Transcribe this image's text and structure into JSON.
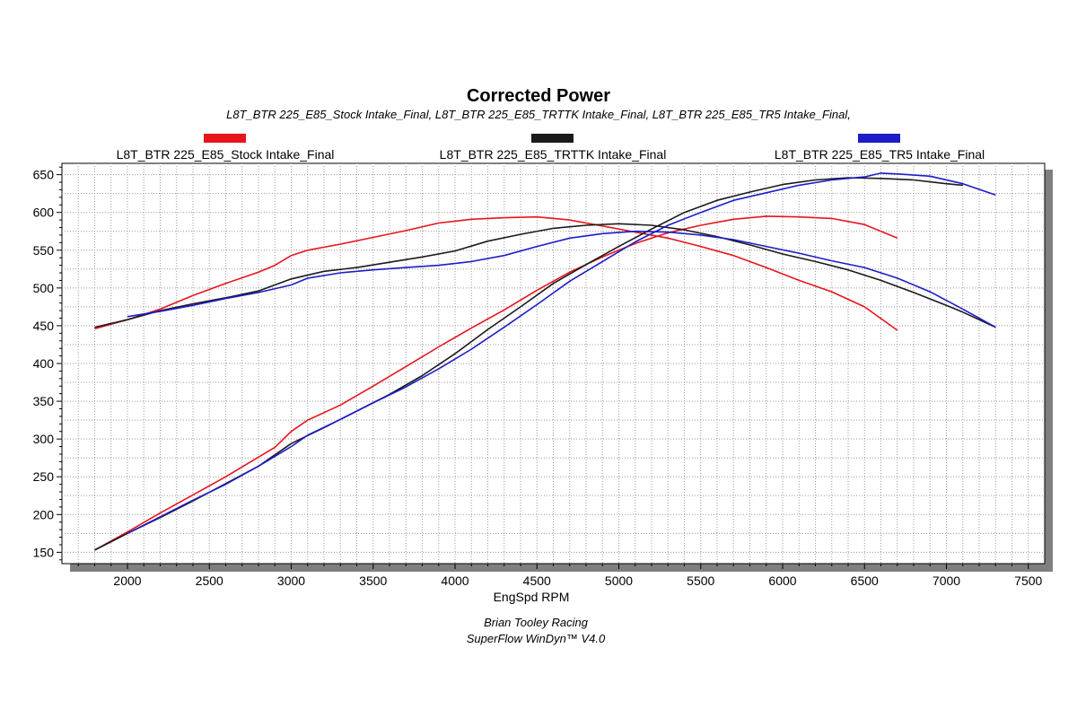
{
  "chart_data": {
    "type": "line",
    "title": "Corrected Power",
    "subtitle": "L8T_BTR 225_E85_Stock Intake_Final, L8T_BTR 225_E85_TRTTK Intake_Final, L8T_BTR 225_E85_TR5 Intake_Final,",
    "xlabel": "EngSpd RPM",
    "ylabel": "",
    "xlim": [
      1600,
      7600
    ],
    "ylim": [
      135,
      665
    ],
    "xticks": [
      2000,
      2500,
      3000,
      3500,
      4000,
      4500,
      5000,
      5500,
      6000,
      6500,
      7000,
      7500
    ],
    "yticks": [
      150,
      200,
      250,
      300,
      350,
      400,
      450,
      500,
      550,
      600,
      650
    ],
    "grid": true,
    "legend_position": "top",
    "credits": [
      "Brian Tooley Racing",
      "SuperFlow WinDyn™  V4.0"
    ],
    "series": [
      {
        "name": "L8T_BTR 225_E85_Stock Intake_Final",
        "color": "#e8141c",
        "curves": [
          {
            "kind": "torque",
            "points": [
              [
                1800,
                446
              ],
              [
                2000,
                458
              ],
              [
                2200,
                472
              ],
              [
                2400,
                490
              ],
              [
                2600,
                506
              ],
              [
                2800,
                521
              ],
              [
                2900,
                530
              ],
              [
                3000,
                543
              ],
              [
                3100,
                550
              ],
              [
                3300,
                558
              ],
              [
                3500,
                567
              ],
              [
                3700,
                576
              ],
              [
                3900,
                586
              ],
              [
                4100,
                591
              ],
              [
                4300,
                593
              ],
              [
                4500,
                594
              ],
              [
                4700,
                590
              ],
              [
                4900,
                582
              ],
              [
                5100,
                574
              ],
              [
                5300,
                566
              ],
              [
                5500,
                555
              ],
              [
                5700,
                543
              ],
              [
                5900,
                527
              ],
              [
                6100,
                510
              ],
              [
                6300,
                495
              ],
              [
                6500,
                475
              ],
              [
                6700,
                444
              ]
            ]
          },
          {
            "kind": "power",
            "points": [
              [
                1800,
                153
              ],
              [
                2000,
                177
              ],
              [
                2200,
                202
              ],
              [
                2400,
                226
              ],
              [
                2600,
                250
              ],
              [
                2800,
                276
              ],
              [
                2900,
                289
              ],
              [
                3000,
                310
              ],
              [
                3100,
                325
              ],
              [
                3300,
                345
              ],
              [
                3500,
                370
              ],
              [
                3700,
                396
              ],
              [
                3900,
                422
              ],
              [
                4100,
                447
              ],
              [
                4300,
                471
              ],
              [
                4500,
                497
              ],
              [
                4700,
                521
              ],
              [
                4900,
                541
              ],
              [
                5100,
                559
              ],
              [
                5300,
                573
              ],
              [
                5500,
                583
              ],
              [
                5700,
                591
              ],
              [
                5900,
                595
              ],
              [
                6100,
                594
              ],
              [
                6300,
                592
              ],
              [
                6500,
                584
              ],
              [
                6700,
                566
              ]
            ]
          }
        ]
      },
      {
        "name": "L8T_BTR 225_E85_TRTTK Intake_Final",
        "color": "#1a1a1a",
        "curves": [
          {
            "kind": "torque",
            "points": [
              [
                1800,
                448
              ],
              [
                2000,
                458
              ],
              [
                2200,
                470
              ],
              [
                2400,
                479
              ],
              [
                2600,
                487
              ],
              [
                2800,
                496
              ],
              [
                3000,
                512
              ],
              [
                3200,
                522
              ],
              [
                3400,
                527
              ],
              [
                3600,
                534
              ],
              [
                3800,
                541
              ],
              [
                4000,
                549
              ],
              [
                4200,
                562
              ],
              [
                4400,
                571
              ],
              [
                4600,
                579
              ],
              [
                4800,
                583
              ],
              [
                5000,
                585
              ],
              [
                5200,
                583
              ],
              [
                5400,
                577
              ],
              [
                5600,
                568
              ],
              [
                5800,
                557
              ],
              [
                6000,
                545
              ],
              [
                6200,
                535
              ],
              [
                6400,
                524
              ],
              [
                6600,
                510
              ],
              [
                6800,
                494
              ],
              [
                7000,
                477
              ],
              [
                7100,
                468
              ],
              [
                7300,
                448
              ]
            ]
          },
          {
            "kind": "power",
            "points": [
              [
                1800,
                153
              ],
              [
                2000,
                175
              ],
              [
                2200,
                196
              ],
              [
                2400,
                218
              ],
              [
                2600,
                241
              ],
              [
                2800,
                264
              ],
              [
                3000,
                294
              ],
              [
                3200,
                315
              ],
              [
                3400,
                337
              ],
              [
                3600,
                359
              ],
              [
                3800,
                384
              ],
              [
                4000,
                413
              ],
              [
                4200,
                445
              ],
              [
                4400,
                475
              ],
              [
                4600,
                506
              ],
              [
                4800,
                531
              ],
              [
                5000,
                555
              ],
              [
                5200,
                578
              ],
              [
                5400,
                600
              ],
              [
                5600,
                616
              ],
              [
                5800,
                627
              ],
              [
                6000,
                637
              ],
              [
                6200,
                643
              ],
              [
                6400,
                646
              ],
              [
                6600,
                645
              ],
              [
                6800,
                643
              ],
              [
                7000,
                638
              ],
              [
                7100,
                636
              ]
            ]
          }
        ]
      },
      {
        "name": "L8T_BTR 225_E85_TR5 Intake_Final",
        "color": "#1c1cc8",
        "curves": [
          {
            "kind": "torque",
            "points": [
              [
                2000,
                462
              ],
              [
                2200,
                469
              ],
              [
                2400,
                477
              ],
              [
                2600,
                486
              ],
              [
                2800,
                494
              ],
              [
                3000,
                504
              ],
              [
                3100,
                513
              ],
              [
                3300,
                520
              ],
              [
                3500,
                524
              ],
              [
                3700,
                527
              ],
              [
                3900,
                530
              ],
              [
                4100,
                535
              ],
              [
                4300,
                543
              ],
              [
                4500,
                555
              ],
              [
                4700,
                566
              ],
              [
                4900,
                572
              ],
              [
                5100,
                575
              ],
              [
                5300,
                574
              ],
              [
                5500,
                570
              ],
              [
                5700,
                564
              ],
              [
                5900,
                555
              ],
              [
                6100,
                546
              ],
              [
                6300,
                536
              ],
              [
                6500,
                527
              ],
              [
                6700,
                513
              ],
              [
                6900,
                495
              ],
              [
                7100,
                472
              ],
              [
                7300,
                448
              ]
            ]
          },
          {
            "kind": "power",
            "points": [
              [
                2000,
                175
              ],
              [
                2200,
                197
              ],
              [
                2400,
                219
              ],
              [
                2600,
                240
              ],
              [
                2800,
                264
              ],
              [
                3000,
                290
              ],
              [
                3100,
                305
              ],
              [
                3300,
                326
              ],
              [
                3500,
                348
              ],
              [
                3700,
                369
              ],
              [
                3900,
                393
              ],
              [
                4100,
                419
              ],
              [
                4300,
                448
              ],
              [
                4500,
                478
              ],
              [
                4700,
                509
              ],
              [
                4900,
                535
              ],
              [
                5100,
                561
              ],
              [
                5300,
                583
              ],
              [
                5500,
                600
              ],
              [
                5700,
                616
              ],
              [
                5900,
                626
              ],
              [
                6100,
                636
              ],
              [
                6300,
                643
              ],
              [
                6500,
                647
              ],
              [
                6600,
                652
              ],
              [
                6700,
                651
              ],
              [
                6900,
                648
              ],
              [
                7100,
                638
              ],
              [
                7300,
                623
              ]
            ]
          }
        ]
      }
    ]
  }
}
